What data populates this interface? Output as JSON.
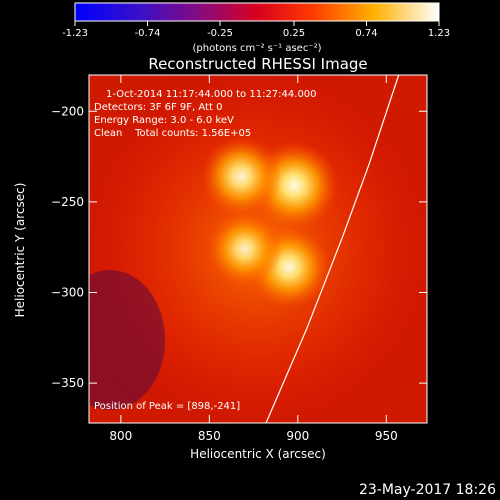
{
  "colorbar": {
    "ticks": [
      "-1.23",
      "-0.74",
      "-0.25",
      "0.25",
      "0.74",
      "1.23"
    ],
    "min": -1.23,
    "max": 1.23,
    "unit_label": "(photons cm⁻² s⁻¹ asec⁻²)"
  },
  "chart_data": {
    "type": "heatmap",
    "title": "Reconstructed RHESSI Image",
    "xlabel": "Heliocentric X (arcsec)",
    "ylabel": "Heliocentric Y (arcsec)",
    "xlim": [
      782,
      973
    ],
    "ylim": [
      -372,
      -180
    ],
    "xticks": [
      800,
      850,
      900,
      950
    ],
    "yticks": [
      -200,
      -250,
      -300,
      -350
    ],
    "annotations": [
      "1-Oct-2014 11:17:44.000 to 11:27:44.000",
      "Detectors: 3F 6F 9F, Att 0",
      "Energy Range: 3.0 - 6.0 keV",
      "Clean    Total counts: 1.56E+05"
    ],
    "peak_label": "Position of Peak = [898,-241]",
    "peak": [
      898,
      -241
    ],
    "sources": [
      {
        "x": 898,
        "y": -241,
        "intensity": 1.23
      },
      {
        "x": 868,
        "y": -236,
        "intensity": 1.0
      },
      {
        "x": 895,
        "y": -286,
        "intensity": 1.08
      },
      {
        "x": 870,
        "y": -276,
        "intensity": 0.85
      }
    ],
    "limb": [
      [
        957,
        -180
      ],
      [
        940,
        -230
      ],
      [
        925,
        -270
      ],
      [
        905,
        -320
      ],
      [
        882,
        -372
      ]
    ]
  },
  "footer": {
    "date": "23-May-2017 18:26"
  },
  "colors": {
    "background": "#000000",
    "limb": "#ffffff"
  }
}
